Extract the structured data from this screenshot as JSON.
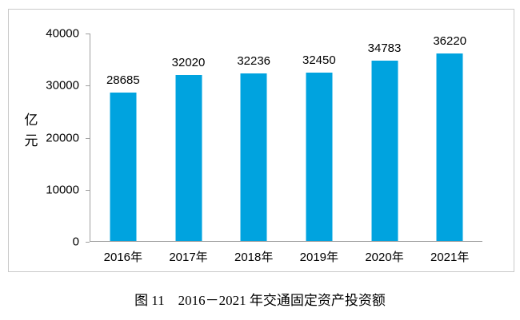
{
  "chart_data": {
    "type": "bar",
    "categories": [
      "2016年",
      "2017年",
      "2018年",
      "2019年",
      "2020年",
      "2021年"
    ],
    "values": [
      28685,
      32020,
      32236,
      32450,
      34783,
      36220
    ],
    "title": "图 11　2016－2021 年交通固定资产投资额",
    "xlabel": "",
    "ylabel": "亿元",
    "ylim": [
      0,
      40000
    ],
    "yticks": [
      40000,
      30000,
      20000,
      10000,
      0
    ],
    "grid": false,
    "legend": "none",
    "bar_color": "#00A3DF",
    "data_labels_shown": true
  },
  "colors": {
    "bar": "#00A3DF",
    "axis": "#9e9e9e",
    "frame_border": "#c9c9c9",
    "text": "#000000",
    "background": "#ffffff"
  }
}
